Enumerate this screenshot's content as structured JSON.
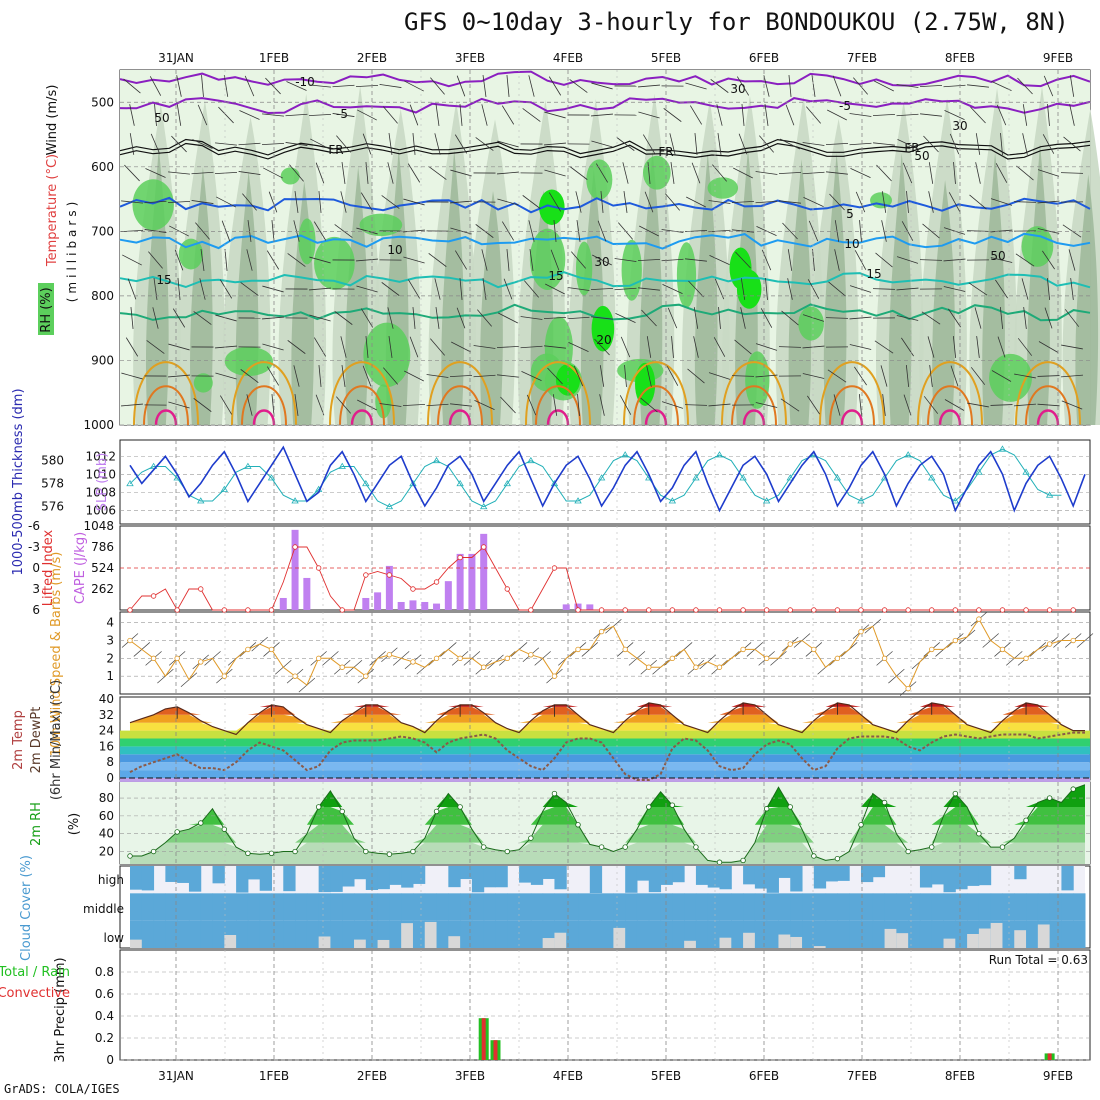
{
  "title": "GFS 0~10day 3-hourly for BONDOUKOU (2.75W, 8N)",
  "credit": "GrADS: COLA/IGES",
  "dates": [
    "31JAN",
    "1FEB",
    "2FEB",
    "3FEB",
    "4FEB",
    "5FEB",
    "6FEB",
    "7FEB",
    "8FEB",
    "9FEB"
  ],
  "colors": {
    "rh_light": "#e8f5e4",
    "rh_mid": "#c9d9c4",
    "rh_dark": "#9ab596",
    "rh_green": "#5ccf5c",
    "rh_bright": "#18e018",
    "temp_neg": "#8a1fc0",
    "temp_fr": "#111111",
    "temp_5": "#1e5adc",
    "temp_10": "#1e9bf0",
    "temp_15": "#1ebeb4",
    "temp_20": "#1eaa78",
    "temp_25": "#e0a020",
    "temp_30": "#e07820",
    "temp_35": "#e01e8c",
    "slp": "#1e3ccc",
    "thickness": "#22b0b8",
    "li": "#e03030",
    "cape": "#c080f0",
    "wind10": "#e09a28",
    "dewpt": "#8a5a48",
    "rh2m": "#18a018",
    "cloud": "#5ba8d8",
    "cloud_gap": "#d8d8d8",
    "precip_total": "#22c022",
    "precip_conv": "#e03030"
  },
  "chart_data": [
    {
      "panel": "upper-air",
      "type": "heatmap",
      "ylabel": "(millibars)",
      "legend_labels": [
        "Wind (m/s)",
        "Temperature (°C)",
        "RH (%)"
      ],
      "y_ticks": [
        500,
        600,
        700,
        800,
        900,
        1000
      ],
      "ylim": [
        450,
        1000
      ],
      "contour_labels": [
        "-10",
        "-5",
        "FR",
        "5",
        "10",
        "15",
        "20",
        "30",
        "50"
      ],
      "isotherms": [
        {
          "label": "-10",
          "pressure": 465
        },
        {
          "label": "-5",
          "pressure": 505
        },
        {
          "label": "FR",
          "pressure": 570
        },
        {
          "label": "5",
          "pressure": 660
        },
        {
          "label": "10",
          "pressure": 715
        },
        {
          "label": "15",
          "pressure": 775
        },
        {
          "label": "20",
          "pressure": 825
        }
      ]
    },
    {
      "panel": "slp-thickness",
      "type": "line",
      "ylabel_left": "1000-500mb Thickness (dm)",
      "ylabel_right": "SLP (mb)",
      "left_ticks": [
        576,
        578,
        580
      ],
      "right_ticks": [
        1006,
        1008,
        1010,
        1012
      ],
      "series": [
        {
          "name": "SLP (mb)",
          "values": [
            1011,
            1009,
            1010.5,
            1012,
            1010,
            1007.5,
            1009,
            1011,
            1012.5,
            1010,
            1007,
            1009,
            1011,
            1013,
            1010,
            1007,
            1008,
            1011,
            1012.5,
            1010,
            1007,
            1009,
            1011,
            1012,
            1009,
            1006.5,
            1008.5,
            1011,
            1012,
            1010,
            1007,
            1009,
            1011,
            1012.5,
            1009.5,
            1006.5,
            1009,
            1011,
            1012,
            1009.5,
            1006.5,
            1008.5,
            1011,
            1012.5,
            1010,
            1007,
            1008.5,
            1011,
            1012.5,
            1009,
            1006,
            1008.5,
            1011,
            1012,
            1010,
            1007,
            1009,
            1011,
            1012.5,
            1010,
            1006.5,
            1008.5,
            1011,
            1012.5,
            1010,
            1006.5,
            1009,
            1011,
            1012,
            1010,
            1006,
            1008.5,
            1011,
            1012.5,
            1010,
            1006,
            1009,
            1011,
            1012,
            1009.5,
            1006.5,
            1010
          ]
        },
        {
          "name": "Thickness (dm)",
          "values": [
            578,
            579,
            579.5,
            579.5,
            578.5,
            577,
            576.5,
            576.5,
            577.5,
            579,
            579.5,
            579.5,
            578.5,
            577,
            576.5,
            576.5,
            577.5,
            579,
            579.5,
            579.5,
            578,
            576.5,
            576,
            576.5,
            578,
            579.5,
            580,
            579.5,
            578,
            576.5,
            576,
            576.5,
            578,
            579.5,
            580,
            579.5,
            578,
            576.5,
            576.5,
            577,
            578.5,
            580,
            580.5,
            580,
            578.5,
            577,
            576.5,
            577,
            578.5,
            580,
            580.5,
            580,
            578.5,
            577,
            576.5,
            577,
            578.5,
            580,
            580.5,
            580,
            578.5,
            577,
            576.5,
            577,
            578.5,
            580,
            580.5,
            580,
            578.5,
            577,
            576.5,
            577.5,
            579,
            580.5,
            581,
            580.5,
            579,
            577.5,
            577,
            577
          ]
        }
      ]
    },
    {
      "panel": "lifted-index-cape",
      "type": "bar",
      "ylabel_left": "Lifted Index",
      "ylabel_right": "CAPE (J/kg)",
      "li_ticks": [
        "-6",
        "-3",
        "0",
        "3",
        "6"
      ],
      "cape_ticks": [
        262,
        524,
        786,
        1048
      ],
      "cape_series": {
        "name": "CAPE (J/kg)",
        "values": [
          0,
          0,
          0,
          0,
          0,
          0,
          0,
          0,
          0,
          0,
          0,
          0,
          0,
          150,
          1000,
          400,
          0,
          0,
          0,
          0,
          150,
          220,
          550,
          100,
          120,
          100,
          80,
          360,
          700,
          700,
          950,
          0,
          0,
          0,
          0,
          0,
          0,
          70,
          80,
          70,
          0,
          0,
          0,
          0,
          0,
          0,
          0,
          0,
          0,
          0,
          0,
          0,
          0,
          0,
          0,
          0,
          0,
          0,
          0,
          0,
          0,
          0,
          0,
          0,
          0,
          0,
          0,
          0,
          0,
          0,
          0,
          0,
          0,
          0,
          0,
          0,
          0,
          0,
          0,
          0,
          0,
          0
        ]
      },
      "li_series": {
        "name": "Lifted Index",
        "values": [
          6,
          4,
          4,
          3,
          6,
          3,
          3,
          6,
          6,
          6,
          6,
          6,
          6,
          2,
          -3,
          -3,
          0,
          4,
          6,
          6,
          1,
          0.5,
          1,
          1.5,
          3,
          3,
          2,
          0,
          -1.5,
          -1.5,
          -3,
          0,
          3,
          6,
          6,
          3,
          0,
          0,
          6,
          6,
          6,
          6,
          6,
          6,
          6,
          6,
          6,
          6,
          6,
          6,
          6,
          6,
          6,
          6,
          6,
          6,
          6,
          6,
          6,
          6,
          6,
          6,
          6,
          6,
          6,
          6,
          6,
          6,
          6,
          6,
          6,
          6,
          6,
          6,
          6,
          6,
          6,
          6,
          6,
          6,
          6
        ]
      }
    },
    {
      "panel": "wind-10m",
      "type": "line",
      "ylabel": "10m Wind Speed & Barbs (m/s)",
      "y_ticks": [
        1,
        2,
        3,
        4
      ],
      "series": [
        {
          "name": "10m Wind Speed (m/s)",
          "values": [
            3,
            2.5,
            2,
            1,
            2,
            0.8,
            1.8,
            2,
            1,
            2,
            2.5,
            2.8,
            2.5,
            1.5,
            1,
            0.5,
            2,
            2,
            1.5,
            1.5,
            1,
            2,
            2.2,
            2,
            1.8,
            1.5,
            2,
            2.5,
            2,
            2,
            1.5,
            1.8,
            2,
            2.5,
            2.2,
            2,
            1,
            2,
            2.5,
            2.5,
            3.5,
            3.8,
            2.5,
            2,
            1.5,
            1.5,
            2,
            2.5,
            1.5,
            1.8,
            1.5,
            2,
            2.5,
            2.5,
            2,
            2,
            2.8,
            3,
            2.5,
            1.5,
            2,
            2.5,
            3.5,
            3.8,
            2,
            1,
            0.3,
            1.8,
            2.5,
            2.5,
            3,
            3.2,
            4.2,
            3,
            2.5,
            2,
            2,
            2.5,
            2.8,
            3,
            3,
            3
          ]
        }
      ]
    },
    {
      "panel": "temp-2m",
      "type": "area",
      "ylabel": "2m Temp 2m DewPt (6hr Min/Max) (°C)",
      "y_ticks": [
        0,
        8,
        16,
        24,
        32,
        40
      ],
      "series": [
        {
          "name": "2m Temp",
          "values": [
            28,
            30,
            32,
            35,
            36,
            33,
            29,
            26,
            24,
            22,
            28,
            33,
            37,
            36,
            31,
            27,
            25,
            23,
            29,
            33,
            37,
            37,
            33,
            28,
            26,
            23,
            29,
            34,
            37,
            37,
            33,
            28,
            25,
            23,
            29,
            34,
            37,
            37,
            32,
            27,
            25,
            23,
            29,
            34,
            38,
            37,
            32,
            27,
            25,
            23,
            29,
            34,
            38,
            37,
            32,
            27,
            25,
            23,
            29,
            34,
            38,
            37,
            32,
            27,
            25,
            23,
            29,
            34,
            38,
            37,
            32,
            27,
            25,
            23,
            29,
            34,
            38,
            37,
            32,
            27,
            24,
            24
          ]
        },
        {
          "name": "2m DewPt",
          "values": [
            3,
            6,
            8,
            10,
            12,
            8,
            5,
            5,
            4,
            8,
            14,
            18,
            16,
            14,
            9,
            4,
            6,
            14,
            18,
            19,
            19,
            19,
            20,
            21,
            20,
            18,
            13,
            18,
            20,
            21,
            22,
            20,
            14,
            10,
            6,
            4,
            10,
            18,
            20,
            20,
            18,
            10,
            2,
            -1,
            -1,
            2,
            15,
            20,
            19,
            14,
            6,
            4,
            5,
            12,
            17,
            19,
            17,
            10,
            4,
            6,
            15,
            20,
            21,
            21,
            21,
            20,
            16,
            14,
            18,
            21,
            22,
            21,
            20,
            21,
            22,
            22,
            22,
            20,
            21,
            22,
            23,
            23
          ]
        }
      ]
    },
    {
      "panel": "rh-2m",
      "type": "area",
      "ylabel": "2m RH (%)",
      "y_ticks": [
        20,
        40,
        60,
        80
      ],
      "series": [
        {
          "name": "2m RH (%)",
          "values": [
            15,
            15,
            20,
            30,
            42,
            45,
            52,
            68,
            45,
            25,
            18,
            17,
            18,
            20,
            20,
            40,
            70,
            88,
            65,
            35,
            20,
            18,
            17,
            18,
            20,
            35,
            65,
            85,
            70,
            45,
            25,
            22,
            20,
            22,
            35,
            65,
            85,
            75,
            50,
            28,
            25,
            20,
            25,
            45,
            70,
            87,
            72,
            45,
            25,
            10,
            8,
            8,
            10,
            30,
            68,
            92,
            70,
            45,
            15,
            10,
            12,
            20,
            50,
            85,
            75,
            40,
            20,
            22,
            25,
            60,
            85,
            70,
            40,
            25,
            25,
            35,
            55,
            75,
            80,
            75,
            90,
            95
          ]
        }
      ]
    },
    {
      "panel": "cloud-cover",
      "type": "heatmap",
      "ylabel": "Cloud Cover (%)",
      "row_labels": [
        "high",
        "middle",
        "low"
      ]
    },
    {
      "panel": "precip",
      "type": "bar",
      "ylabel": "3hr Precip (mm)",
      "legend_labels": [
        "Total / Rain",
        "Convective"
      ],
      "y_ticks": [
        "0",
        "0.2",
        "0.4",
        "0.6",
        "0.8"
      ],
      "ylim": [
        0,
        1
      ],
      "run_total": "Run Total = 0.63",
      "series": [
        {
          "name": "Total / Rain",
          "values": [
            0,
            0,
            0,
            0,
            0,
            0,
            0,
            0,
            0,
            0,
            0,
            0,
            0,
            0,
            0,
            0,
            0,
            0,
            0,
            0,
            0,
            0,
            0,
            0,
            0,
            0,
            0,
            0,
            0,
            0,
            0.38,
            0.18,
            0,
            0,
            0,
            0,
            0,
            0,
            0,
            0,
            0,
            0,
            0,
            0,
            0,
            0,
            0,
            0,
            0,
            0,
            0,
            0,
            0,
            0,
            0,
            0,
            0,
            0,
            0,
            0,
            0,
            0,
            0,
            0,
            0,
            0,
            0,
            0,
            0,
            0,
            0,
            0,
            0,
            0,
            0,
            0,
            0,
            0,
            0.06,
            0,
            0,
            0
          ]
        }
      ]
    }
  ]
}
